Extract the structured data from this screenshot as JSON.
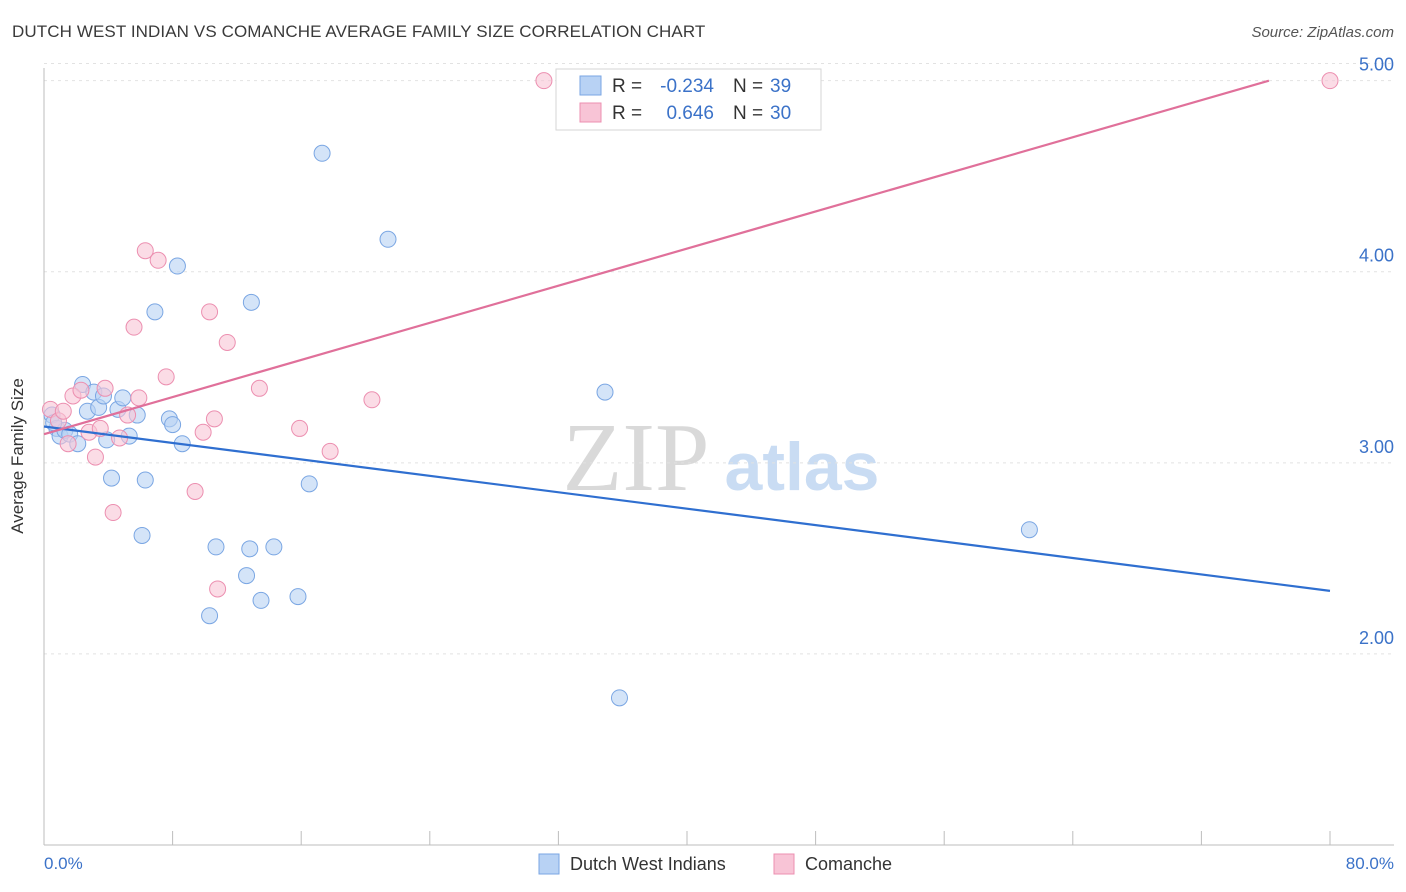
{
  "title": "DUTCH WEST INDIAN VS COMANCHE AVERAGE FAMILY SIZE CORRELATION CHART",
  "source": "Source: ZipAtlas.com",
  "watermark": {
    "zip": "ZIP",
    "atlas": "atlas"
  },
  "colors": {
    "blue_fill": "#b8d2f4",
    "blue_stroke": "#7aa6e3",
    "blue_line": "#2f6fd0",
    "pink_fill": "#f8c4d6",
    "pink_stroke": "#ec8fb0",
    "pink_line": "#e0709a",
    "value_text": "#3b72c8",
    "grid": "#e2e2e2"
  },
  "legend": {
    "rows": [
      {
        "r_label": "R =",
        "r_value": "-0.234",
        "n_label": "N =",
        "n_value": "39"
      },
      {
        "r_label": "R =",
        "r_value": "0.646",
        "n_label": "N =",
        "n_value": "30"
      }
    ]
  },
  "chart_data": {
    "type": "scatter",
    "title": "DUTCH WEST INDIAN VS COMANCHE AVERAGE FAMILY SIZE CORRELATION CHART",
    "xlabel": "",
    "ylabel": "Average Family Size",
    "xlim": [
      0,
      80
    ],
    "ylim": [
      1.0,
      5.15
    ],
    "x_tick_labels": [
      "0.0%",
      "80.0%"
    ],
    "y_ticks": [
      2.0,
      3.0,
      4.0,
      5.0
    ],
    "y_tick_labels": [
      "2.00",
      "3.00",
      "4.00",
      "5.00"
    ],
    "grid": true,
    "series": [
      {
        "name": "Dutch West Indians",
        "color": "#b8d2f4",
        "points": [
          [
            0.5,
            3.25
          ],
          [
            0.8,
            3.18
          ],
          [
            1.0,
            3.14
          ],
          [
            1.3,
            3.17
          ],
          [
            1.6,
            3.15
          ],
          [
            2.1,
            3.1
          ],
          [
            2.4,
            3.41
          ],
          [
            2.7,
            3.27
          ],
          [
            3.1,
            3.37
          ],
          [
            3.4,
            3.29
          ],
          [
            3.7,
            3.35
          ],
          [
            3.9,
            3.12
          ],
          [
            4.2,
            2.92
          ],
          [
            4.6,
            3.28
          ],
          [
            4.9,
            3.34
          ],
          [
            5.3,
            3.14
          ],
          [
            5.8,
            3.25
          ],
          [
            6.1,
            2.62
          ],
          [
            6.3,
            2.91
          ],
          [
            6.9,
            3.79
          ],
          [
            7.8,
            3.23
          ],
          [
            8.0,
            3.2
          ],
          [
            8.3,
            4.03
          ],
          [
            8.6,
            3.1
          ],
          [
            10.3,
            2.2
          ],
          [
            10.7,
            2.56
          ],
          [
            12.6,
            2.41
          ],
          [
            12.8,
            2.55
          ],
          [
            12.9,
            3.84
          ],
          [
            13.5,
            2.28
          ],
          [
            14.3,
            2.56
          ],
          [
            15.8,
            2.3
          ],
          [
            16.5,
            2.89
          ],
          [
            17.3,
            4.62
          ],
          [
            21.4,
            4.17
          ],
          [
            34.9,
            3.37
          ],
          [
            35.8,
            1.77
          ],
          [
            61.3,
            2.65
          ],
          [
            0.6,
            3.21
          ]
        ],
        "trend": {
          "x": [
            0,
            80
          ],
          "y": [
            3.19,
            2.33
          ]
        }
      },
      {
        "name": "Comanche",
        "color": "#f8c4d6",
        "points": [
          [
            0.4,
            3.28
          ],
          [
            0.9,
            3.22
          ],
          [
            1.2,
            3.27
          ],
          [
            1.5,
            3.1
          ],
          [
            1.8,
            3.35
          ],
          [
            2.3,
            3.38
          ],
          [
            2.8,
            3.16
          ],
          [
            3.2,
            3.03
          ],
          [
            3.5,
            3.18
          ],
          [
            3.8,
            3.39
          ],
          [
            4.3,
            2.74
          ],
          [
            4.7,
            3.13
          ],
          [
            5.2,
            3.25
          ],
          [
            5.9,
            3.34
          ],
          [
            6.3,
            4.11
          ],
          [
            7.1,
            4.06
          ],
          [
            5.6,
            3.71
          ],
          [
            7.6,
            3.45
          ],
          [
            9.4,
            2.85
          ],
          [
            9.9,
            3.16
          ],
          [
            10.3,
            3.79
          ],
          [
            10.6,
            3.23
          ],
          [
            10.8,
            2.34
          ],
          [
            11.4,
            3.63
          ],
          [
            13.4,
            3.39
          ],
          [
            15.9,
            3.18
          ],
          [
            17.8,
            3.06
          ],
          [
            20.4,
            3.33
          ],
          [
            31.1,
            5.0
          ],
          [
            80.0,
            5.0
          ]
        ],
        "trend": {
          "x": [
            0,
            76.2
          ],
          "y": [
            3.15,
            5.0
          ]
        }
      }
    ]
  }
}
